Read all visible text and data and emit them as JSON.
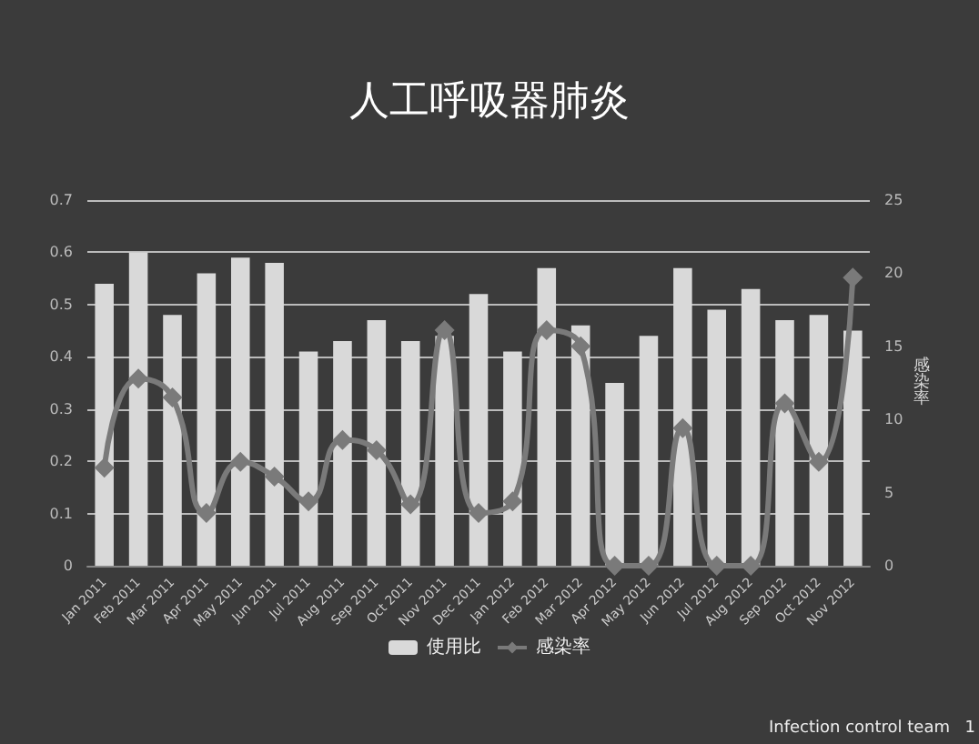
{
  "chart_data": {
    "type": "bar",
    "title": "人工呼吸器肺炎",
    "y2label": "感染率",
    "categories": [
      "Jan 2011",
      "Feb 2011",
      "Mar 2011",
      "Apr 2011",
      "May 2011",
      "Jun 2011",
      "Jul 2011",
      "Aug 2011",
      "Sep 2011",
      "Oct 2011",
      "Nov 2011",
      "Dec 2011",
      "Jan 2012",
      "Feb 2012",
      "Mar 2012",
      "Apr 2012",
      "May 2012",
      "Jun 2012",
      "Jul 2012",
      "Aug 2012",
      "Sep 2012",
      "Oct 2012",
      "Nov 2012"
    ],
    "series": [
      {
        "name": "使用比",
        "color": "#d9d9d9",
        "values": [
          0.54,
          0.6,
          0.48,
          0.56,
          0.59,
          0.58,
          0.41,
          0.43,
          0.47,
          0.43,
          0.44,
          0.52,
          0.41,
          0.57,
          0.46,
          0.35,
          0.44,
          0.57,
          0.49,
          0.53,
          0.47,
          0.48,
          0.45
        ]
      },
      {
        "name": "感染率",
        "type": "line",
        "axis": "y2",
        "color": "#7a7a7a",
        "marker": "diamond",
        "values": [
          6.7,
          12.8,
          11.5,
          3.6,
          7.1,
          6.1,
          4.4,
          8.6,
          7.9,
          4.2,
          16.1,
          3.6,
          4.4,
          16.1,
          15.0,
          0,
          0,
          9.4,
          0,
          0,
          11.1,
          7.1,
          19.7
        ]
      }
    ],
    "ylim": [
      0,
      0.7
    ],
    "yticks": [
      0,
      0.1,
      0.2,
      0.3,
      0.4,
      0.5,
      0.6,
      0.7
    ],
    "y2lim": [
      0,
      25
    ],
    "y2ticks": [
      0,
      5,
      10,
      15,
      20,
      25
    ],
    "grid": "y",
    "legend": "bottom",
    "annotations": [
      "Infection control team",
      "1"
    ]
  }
}
